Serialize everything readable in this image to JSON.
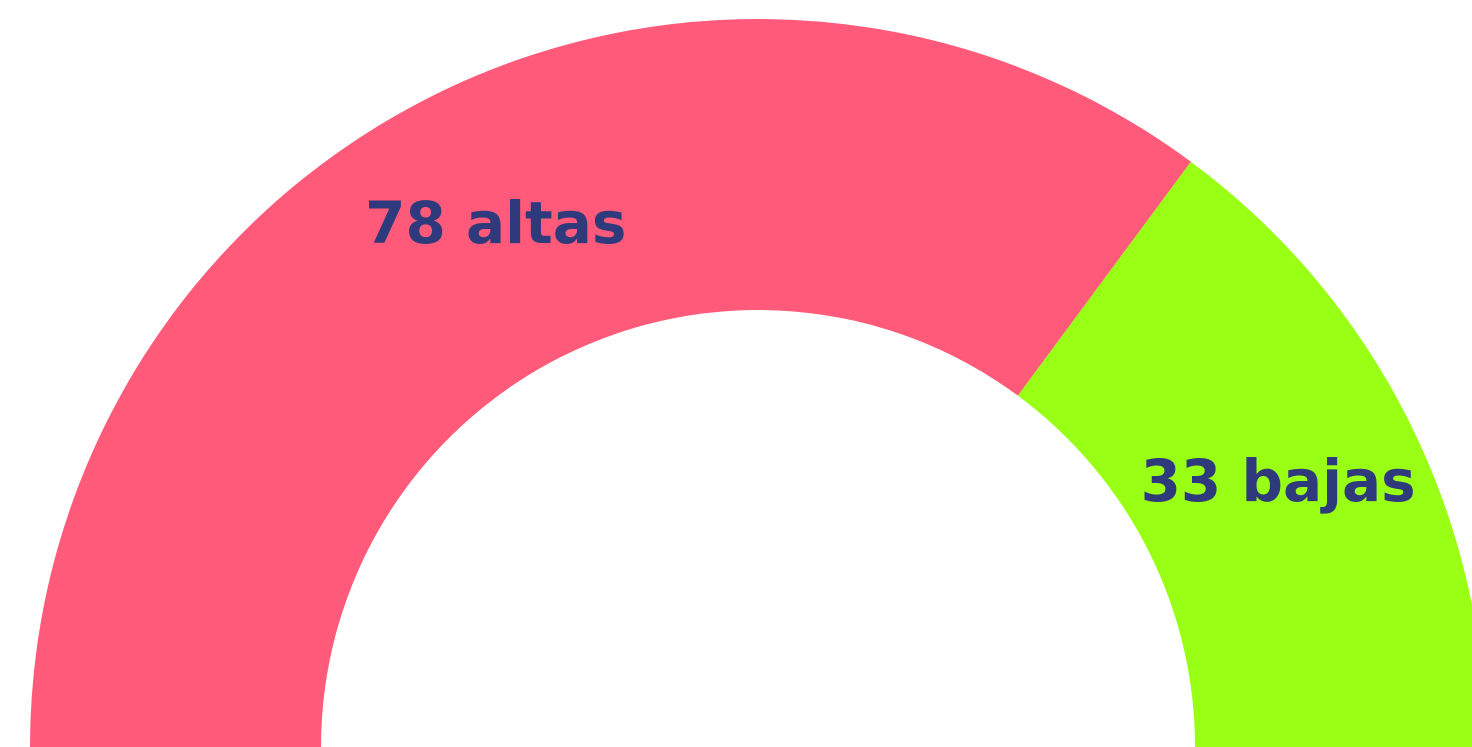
{
  "chart_data": {
    "type": "half-donut",
    "categories": [
      "altas",
      "bajas"
    ],
    "values": [
      78,
      33
    ],
    "value_labels": [
      "78 altas",
      "33 bajas"
    ],
    "colors": [
      "#ff5a79",
      "#99ff14"
    ]
  }
}
